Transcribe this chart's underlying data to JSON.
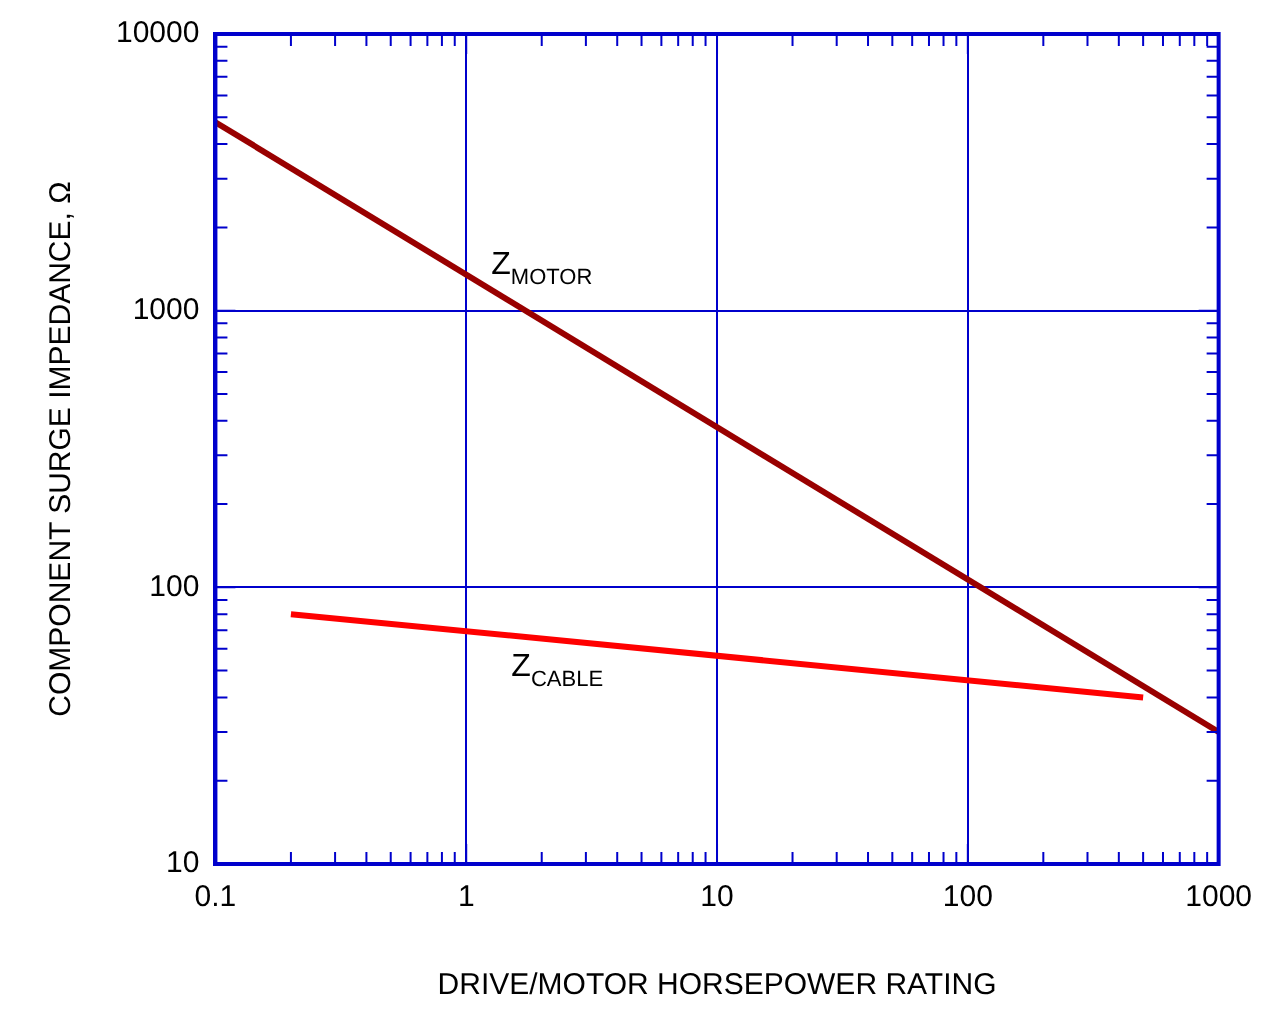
{
  "chart_data": {
    "type": "line",
    "xlabel": "DRIVE/MOTOR HORSEPOWER RATING",
    "ylabel": "COMPONENT SURGE IMPEDANCE, Ω",
    "log": "xy",
    "grid": true,
    "legend": false,
    "marker": "none",
    "line_style": "solid",
    "xlim": [
      0.1,
      1000
    ],
    "ylim": [
      10,
      10000
    ],
    "xticks": [
      0.1,
      {
        "value": 0.2,
        "label": null
      },
      {
        "value": 0.3,
        "label": null
      },
      {
        "value": 0.4,
        "label": null
      },
      {
        "value": 0.5,
        "label": null
      },
      {
        "value": 0.6,
        "label": null
      },
      {
        "value": 0.7,
        "label": null
      },
      {
        "value": 0.8,
        "label": null
      },
      {
        "value": 0.9,
        "label": null
      },
      1,
      {
        "value": 2,
        "label": null
      },
      {
        "value": 3,
        "label": null
      },
      {
        "value": 4,
        "label": null
      },
      {
        "value": 5,
        "label": null
      },
      {
        "value": 6,
        "label": null
      },
      {
        "value": 7,
        "label": null
      },
      {
        "value": 8,
        "label": null
      },
      {
        "value": 9,
        "label": null
      },
      10,
      {
        "value": 20,
        "label": null
      },
      {
        "value": 30,
        "label": null
      },
      {
        "value": 40,
        "label": null
      },
      {
        "value": 50,
        "label": null
      },
      {
        "value": 60,
        "label": null
      },
      {
        "value": 70,
        "label": null
      },
      {
        "value": 80,
        "label": null
      },
      {
        "value": 90,
        "label": null
      },
      100,
      {
        "value": 200,
        "label": null
      },
      {
        "value": 300,
        "label": null
      },
      {
        "value": 400,
        "label": null
      },
      {
        "value": 500,
        "label": null
      },
      {
        "value": 600,
        "label": null
      },
      {
        "value": 700,
        "label": null
      },
      {
        "value": 800,
        "label": null
      },
      {
        "value": 900,
        "label": null
      },
      1000
    ],
    "yticks": [
      10,
      {
        "value": 20,
        "label": null
      },
      {
        "value": 30,
        "label": null
      },
      {
        "value": 40,
        "label": null
      },
      {
        "value": 50,
        "label": null
      },
      {
        "value": 60,
        "label": null
      },
      {
        "value": 70,
        "label": null
      },
      {
        "value": 80,
        "label": null
      },
      {
        "value": 90,
        "label": null
      },
      100,
      {
        "value": 200,
        "label": null
      },
      {
        "value": 300,
        "label": null
      },
      {
        "value": 400,
        "label": null
      },
      {
        "value": 500,
        "label": null
      },
      {
        "value": 600,
        "label": null
      },
      {
        "value": 700,
        "label": null
      },
      {
        "value": 800,
        "label": null
      },
      {
        "value": 900,
        "label": null
      },
      1000,
      {
        "value": 2000,
        "label": null
      },
      {
        "value": 3000,
        "label": null
      },
      {
        "value": 4000,
        "label": null
      },
      {
        "value": 5000,
        "label": null
      },
      {
        "value": 6000,
        "label": null
      },
      {
        "value": 7000,
        "label": null
      },
      {
        "value": 8000,
        "label": null
      },
      {
        "value": 9000,
        "label": null
      },
      10000
    ],
    "series": [
      {
        "color": "#990000",
        "x": [
          0.1,
          1000
        ],
        "values": [
          4800,
          30
        ]
      },
      {
        "color": "#ff0000",
        "x": [
          0.2,
          500
        ],
        "values": [
          80,
          40
        ]
      }
    ],
    "annotations": [
      "Z$_{MOTOR}$",
      "Z$_{CABLE}$"
    ]
  }
}
